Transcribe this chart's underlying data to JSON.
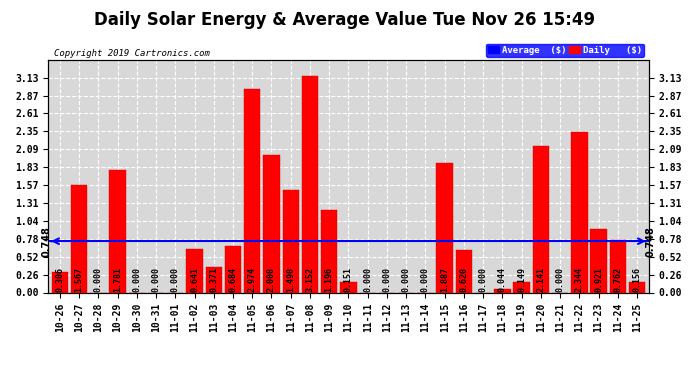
{
  "title": "Daily Solar Energy & Average Value Tue Nov 26 15:49",
  "copyright": "Copyright 2019 Cartronics.com",
  "categories": [
    "10-26",
    "10-27",
    "10-28",
    "10-29",
    "10-30",
    "10-31",
    "11-01",
    "11-02",
    "11-03",
    "11-04",
    "11-05",
    "11-06",
    "11-07",
    "11-08",
    "11-09",
    "11-10",
    "11-11",
    "11-12",
    "11-13",
    "11-14",
    "11-15",
    "11-16",
    "11-17",
    "11-18",
    "11-19",
    "11-20",
    "11-21",
    "11-22",
    "11-23",
    "11-24",
    "11-25"
  ],
  "values": [
    0.306,
    1.567,
    0.0,
    1.781,
    0.0,
    0.0,
    0.0,
    0.641,
    0.371,
    0.684,
    2.974,
    2.0,
    1.49,
    3.152,
    1.196,
    0.151,
    0.0,
    0.0,
    0.0,
    0.0,
    1.887,
    0.62,
    0.0,
    0.044,
    0.149,
    2.141,
    0.0,
    2.344,
    0.921,
    0.762,
    0.156
  ],
  "average_line": 0.748,
  "bar_color": "#ff0000",
  "bar_edge_color": "#cc0000",
  "avg_line_color": "#0000ff",
  "background_color": "#ffffff",
  "plot_bg_color": "#d8d8d8",
  "grid_color": "#ffffff",
  "ylim": [
    0.0,
    3.39
  ],
  "yticks": [
    0.0,
    0.26,
    0.52,
    0.78,
    1.04,
    1.31,
    1.57,
    1.83,
    2.09,
    2.35,
    2.61,
    2.87,
    3.13
  ],
  "title_fontsize": 12,
  "tick_fontsize": 7,
  "value_fontsize": 6,
  "avg_label": "0.748",
  "legend_avg_label": "Average  ($)",
  "legend_daily_label": "Daily   ($)"
}
